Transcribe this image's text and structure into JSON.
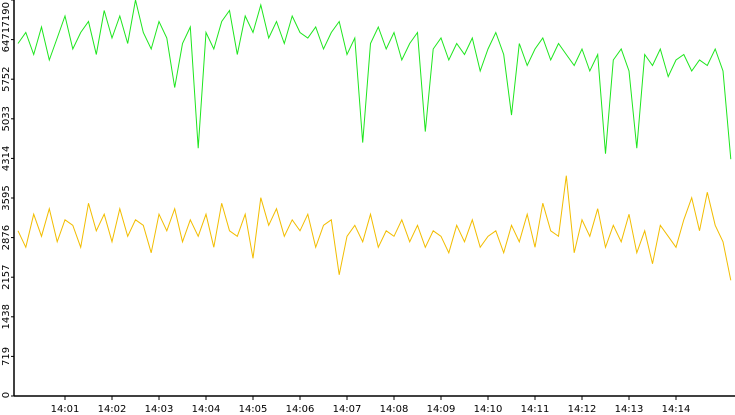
{
  "chart_data": {
    "type": "line",
    "categories": [
      null,
      null,
      null,
      null,
      null,
      null,
      "14:01",
      null,
      null,
      null,
      null,
      null,
      "14:02",
      null,
      null,
      null,
      null,
      null,
      "14:03",
      null,
      null,
      null,
      null,
      null,
      "14:04",
      null,
      null,
      null,
      null,
      null,
      "14:05",
      null,
      null,
      null,
      null,
      null,
      "14:06",
      null,
      null,
      null,
      null,
      null,
      "14:07",
      null,
      null,
      null,
      null,
      null,
      "14:08",
      null,
      null,
      null,
      null,
      null,
      "14:09",
      null,
      null,
      null,
      null,
      null,
      "14:10",
      null,
      null,
      null,
      null,
      null,
      "14:11",
      null,
      null,
      null,
      null,
      null,
      "14:12",
      null,
      null,
      null,
      null,
      null,
      "14:13",
      null,
      null,
      null,
      null,
      null,
      "14:14",
      null,
      null,
      null,
      null,
      null,
      null,
      null
    ],
    "series": [
      {
        "color": "#1ee61e",
        "values": [
          6400,
          6600,
          6200,
          6700,
          6100,
          6500,
          6900,
          6300,
          6600,
          6800,
          6200,
          7000,
          6500,
          6900,
          6400,
          7190,
          6600,
          6300,
          6800,
          6500,
          5600,
          6400,
          6700,
          4500,
          6600,
          6300,
          6800,
          7000,
          6200,
          6900,
          6600,
          7100,
          6500,
          6800,
          6400,
          6900,
          6600,
          6500,
          6700,
          6300,
          6600,
          6800,
          6200,
          6500,
          4600,
          6400,
          6700,
          6300,
          6600,
          6100,
          6400,
          6600,
          4800,
          6300,
          6500,
          6100,
          6400,
          6200,
          6500,
          5900,
          6300,
          6600,
          6200,
          5100,
          6400,
          6000,
          6300,
          6500,
          6100,
          6400,
          6200,
          6000,
          6300,
          5900,
          6200,
          4400,
          6100,
          6300,
          5900,
          4500,
          6200,
          6000,
          6300,
          5800,
          6100,
          6200,
          5900,
          6100,
          6000,
          6300,
          5900,
          4300
        ]
      },
      {
        "color": "#f2bd00",
        "values": [
          3000,
          2700,
          3300,
          2900,
          3400,
          2800,
          3200,
          3100,
          2700,
          3500,
          3000,
          3300,
          2800,
          3400,
          2900,
          3200,
          3100,
          2600,
          3300,
          3000,
          3400,
          2800,
          3200,
          2900,
          3300,
          2700,
          3500,
          3000,
          2900,
          3300,
          2500,
          3600,
          3100,
          3400,
          2900,
          3200,
          3000,
          3300,
          2700,
          3100,
          3200,
          2200,
          2900,
          3100,
          2800,
          3300,
          2700,
          3000,
          2900,
          3200,
          2800,
          3100,
          2700,
          3000,
          2900,
          2600,
          3100,
          2800,
          3200,
          2700,
          2900,
          3000,
          2600,
          3100,
          2800,
          3300,
          2700,
          3500,
          3000,
          2900,
          4000,
          2600,
          3200,
          2900,
          3400,
          2700,
          3100,
          2800,
          3300,
          2600,
          3000,
          2400,
          3100,
          2900,
          2700,
          3200,
          3600,
          3000,
          3700,
          3100,
          2800,
          2100
        ]
      }
    ],
    "ylim": [
      0,
      7190
    ],
    "yticks": [
      0,
      719,
      1438,
      2157,
      2876,
      3595,
      4314,
      5033,
      5752,
      6471,
      7190
    ]
  }
}
